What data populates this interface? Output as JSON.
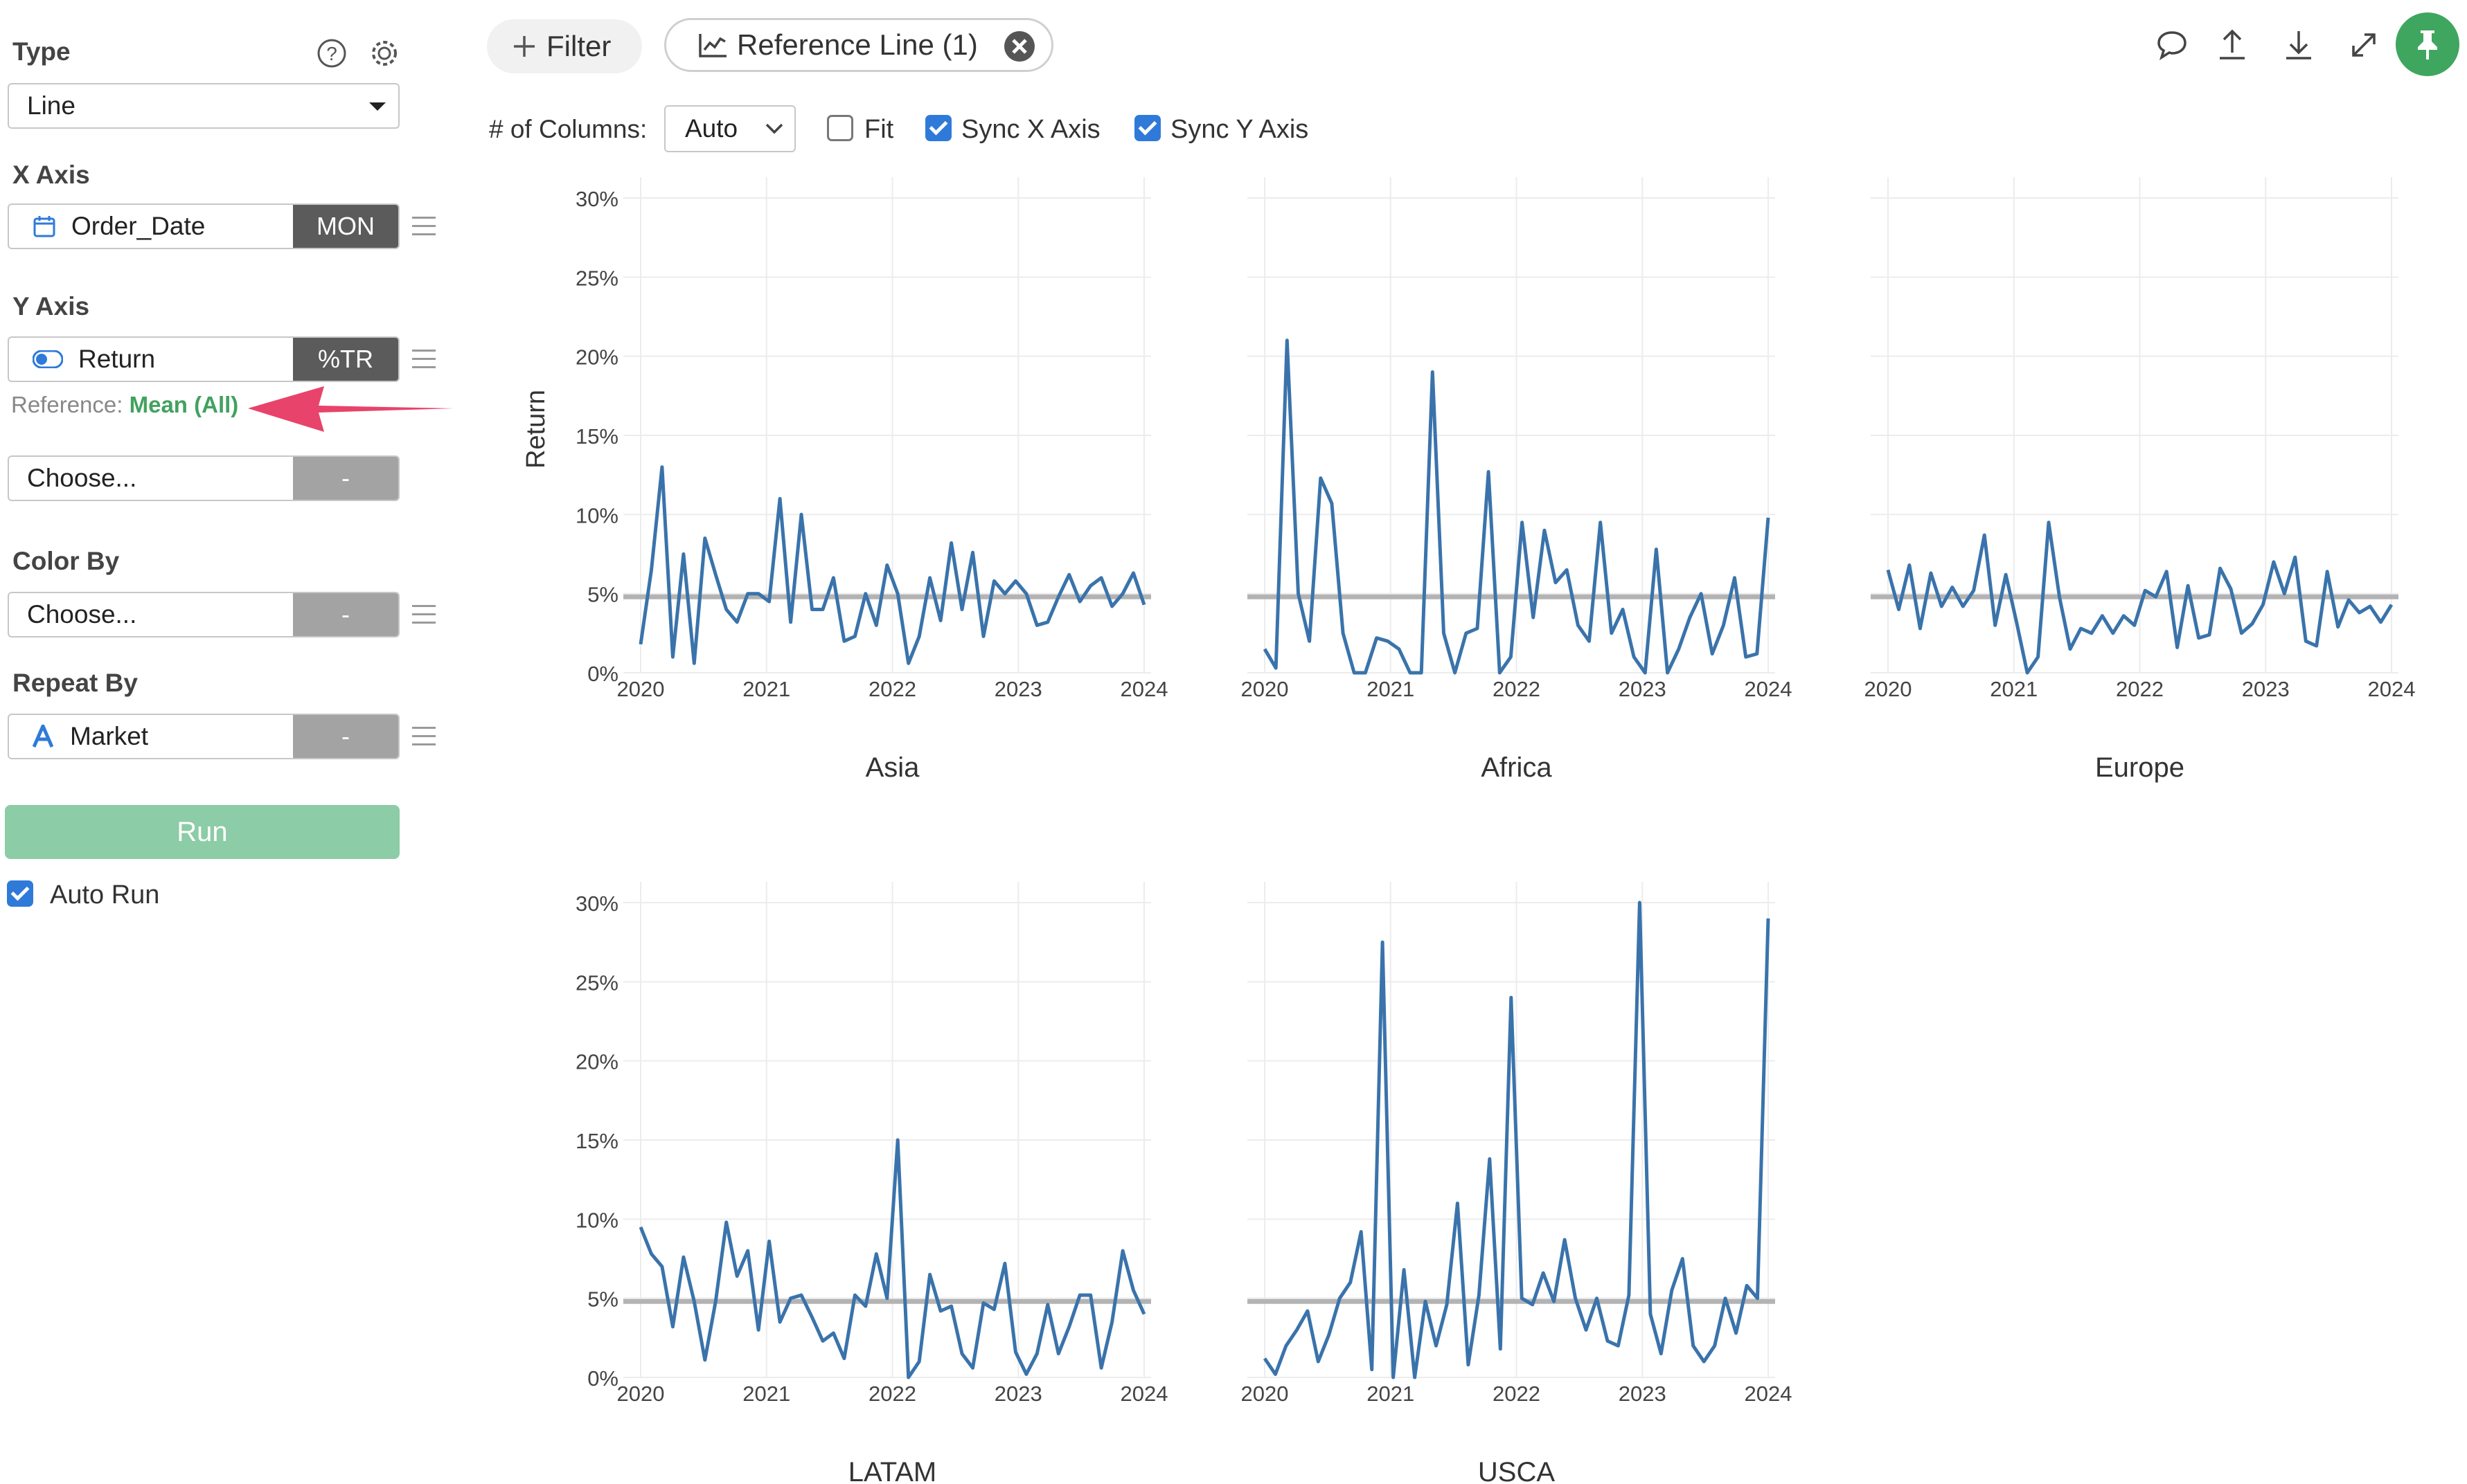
{
  "sidebar": {
    "type_label": "Type",
    "type_value": "Line",
    "x_axis_label": "X Axis",
    "x_field": "Order_Date",
    "x_tag": "MON",
    "y_axis_label": "Y Axis",
    "y_field": "Return",
    "y_tag": "%TR",
    "reference_prefix": "Reference:",
    "reference_value": "Mean (All)",
    "y2_placeholder": "Choose...",
    "y2_tag": "-",
    "color_by_label": "Color By",
    "color_placeholder": "Choose...",
    "color_tag": "-",
    "repeat_by_label": "Repeat By",
    "repeat_field": "Market",
    "repeat_tag": "-",
    "run_label": "Run",
    "auto_run_label": "Auto Run",
    "auto_run_checked": true
  },
  "toolbar": {
    "filter_label": "Filter",
    "reference_line_label": "Reference Line (1)",
    "columns_label": "# of Columns:",
    "columns_value": "Auto",
    "fit_label": "Fit",
    "fit_checked": false,
    "sync_x_label": "Sync X Axis",
    "sync_x_checked": true,
    "sync_y_label": "Sync Y Axis",
    "sync_y_checked": true,
    "icons": [
      "comment-icon",
      "upload-icon",
      "download-icon",
      "expand-icon",
      "pin-icon"
    ]
  },
  "colors": {
    "line": "#3a73ab",
    "reference": "#b3b3b3",
    "accent_green": "#3fa65f",
    "run_button": "#8ccca6",
    "annotation_arrow": "#e8436b"
  },
  "chart_data": {
    "type": "line",
    "y_axis_label": "Return",
    "y_ticks": [
      "0%",
      "5%",
      "10%",
      "15%",
      "20%",
      "25%",
      "30%"
    ],
    "x_ticks": [
      "2020",
      "2021",
      "2022",
      "2023",
      "2024"
    ],
    "ylim": [
      0,
      30
    ],
    "xlim": [
      2020,
      2024
    ],
    "reference_line": {
      "label": "Mean (All)",
      "value": 4.8
    },
    "panels": [
      {
        "name": "Asia",
        "values": [
          1.8,
          6.5,
          13,
          1.0,
          7.5,
          0.6,
          8.5,
          6.2,
          4.0,
          3.2,
          5.0,
          5.0,
          4.5,
          11.0,
          3.2,
          10.0,
          4.0,
          4.0,
          6.0,
          2.0,
          2.3,
          5.0,
          3.0,
          6.8,
          5.0,
          0.6,
          2.3,
          6.0,
          3.3,
          8.2,
          4.0,
          7.6,
          2.3,
          5.8,
          5.0,
          5.8,
          5.0,
          3.0,
          3.2,
          4.8,
          6.2,
          4.5,
          5.5,
          6.0,
          4.2,
          5.0,
          6.3,
          4.3
        ]
      },
      {
        "name": "Africa",
        "values": [
          1.5,
          0.3,
          21,
          5.0,
          2.0,
          12.3,
          10.7,
          2.5,
          0.0,
          0.0,
          2.2,
          2.0,
          1.5,
          0.0,
          0.0,
          19,
          2.5,
          0.0,
          2.5,
          2.8,
          12.7,
          0.0,
          1.0,
          9.5,
          3.5,
          9.0,
          5.7,
          6.5,
          3.0,
          2.0,
          9.5,
          2.5,
          4.0,
          1.0,
          0.0,
          7.8,
          0.0,
          1.5,
          3.5,
          5.0,
          1.2,
          3.0,
          6.0,
          1.0,
          1.2,
          9.8
        ]
      },
      {
        "name": "Europe",
        "values": [
          6.5,
          4.0,
          6.8,
          2.8,
          6.3,
          4.2,
          5.4,
          4.2,
          5.2,
          8.7,
          3.0,
          6.2,
          3.2,
          0.0,
          1.0,
          9.5,
          4.8,
          1.5,
          2.8,
          2.5,
          3.6,
          2.5,
          3.6,
          3.0,
          5.2,
          4.8,
          6.4,
          1.6,
          5.5,
          2.2,
          2.4,
          6.6,
          5.3,
          2.5,
          3.1,
          4.3,
          7.0,
          5.0,
          7.3,
          2.0,
          1.7,
          6.4,
          2.9,
          4.6,
          3.8,
          4.2,
          3.2,
          4.3
        ]
      },
      {
        "name": "LATAM",
        "values": [
          9.5,
          7.8,
          7.0,
          3.2,
          7.6,
          4.8,
          1.1,
          4.8,
          9.8,
          6.4,
          8.0,
          3.0,
          8.6,
          3.5,
          5.0,
          5.2,
          3.8,
          2.3,
          2.8,
          1.2,
          5.2,
          4.5,
          7.8,
          5.0,
          15,
          0.0,
          1.0,
          6.5,
          4.2,
          4.5,
          1.5,
          0.6,
          4.7,
          4.3,
          7.2,
          1.6,
          0.2,
          1.5,
          4.6,
          1.5,
          3.2,
          5.2,
          5.2,
          0.6,
          3.5,
          8.0,
          5.5,
          4.0
        ]
      },
      {
        "name": "USCA",
        "values": [
          1.2,
          0.2,
          2.0,
          3.0,
          4.2,
          1.0,
          2.7,
          5.0,
          6.0,
          9.2,
          0.5,
          27.5,
          0.0,
          6.8,
          0.0,
          4.8,
          2.0,
          4.6,
          11,
          0.8,
          5.2,
          13.8,
          1.8,
          24,
          5.0,
          4.6,
          6.6,
          4.8,
          8.7,
          5.0,
          3.0,
          5.0,
          2.3,
          2.0,
          5.2,
          30,
          4.0,
          1.5,
          5.5,
          7.5,
          2.0,
          1.0,
          2.0,
          5.0,
          2.8,
          5.8,
          5.0,
          29
        ]
      }
    ]
  }
}
